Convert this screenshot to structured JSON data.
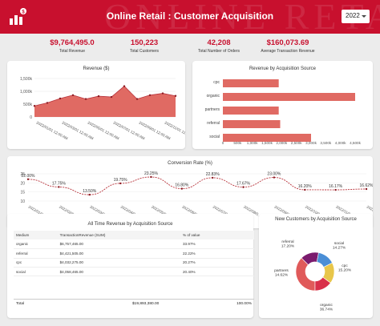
{
  "header": {
    "watermark": "ONLINE RETAIL",
    "title": "Online Retail : Customer Acquisition",
    "year_selected": "2022",
    "colors": {
      "accent": "#c8102e",
      "chart_fill": "#e06a63",
      "donut": [
        "#e05a5a",
        "#7b1b6e",
        "#4a8ed6",
        "#e8c64a",
        "#d9304a"
      ]
    }
  },
  "kpis": [
    {
      "value": "$9,764,495.0",
      "label": "Total Revenue"
    },
    {
      "value": "150,223",
      "label": "Total Customers"
    },
    {
      "value": "42,208",
      "label": "Total Number of Orders"
    },
    {
      "value": "$160,073.69",
      "label": "Average Transaction Revenue"
    }
  ],
  "revenue_chart": {
    "title": "Revenue ($)",
    "y_ticks": [
      "1,500k",
      "1,000k",
      "500k",
      "0"
    ],
    "x_labels": [
      "2022/01/01 12:00 AM",
      "2022/03/01 12:00 AM",
      "2022/05/01 12:00 AM",
      "2022/07/01 12:00 AM",
      "2022/09/01 12:00 AM",
      "2022/11/01 12:00 AM"
    ]
  },
  "source_chart": {
    "title": "Revenue by Acquisition Source",
    "x_ticks": [
      "0",
      "500k",
      "1,000k",
      "1,500k",
      "2,000k",
      "2,500k",
      "3,000k",
      "3,500k",
      "4,000k",
      "4,500k"
    ]
  },
  "conversion_chart": {
    "title": "Conversion Rate (%)",
    "y_ticks": [
      "25",
      "20",
      "15",
      "10"
    ],
    "x_labels": [
      "2022/01/0...",
      "2022/02/0...",
      "2022/03/0...",
      "2022/04/0...",
      "2022/05/0...",
      "2022/06/0...",
      "2022/07/0...",
      "2022/08/0...",
      "2022/09/0...",
      "2022/10/0...",
      "2022/11/0...",
      "2022/12/0..."
    ]
  },
  "table": {
    "title": "All Time Revenue by Acquisition Source",
    "headers": [
      "Medium",
      "TransactionRevenue (SUM)",
      "% of value"
    ],
    "rows": [
      [
        "organic",
        "$6,757,465.00",
        "33.97%"
      ],
      [
        "referral",
        "$4,421,505.00",
        "22.22%"
      ],
      [
        "cpc",
        "$4,032,275.00",
        "20.27%"
      ],
      [
        "social",
        "$4,058,465.00",
        "20.40%"
      ]
    ],
    "total_label": "Total",
    "total_revenue": "$19,893,380.00",
    "total_pct": "100.00%"
  },
  "donut": {
    "title": "New Customers by Acquisition Source"
  },
  "chart_data": [
    {
      "type": "area",
      "title": "Revenue ($)",
      "x": [
        "2022-01",
        "2022-02",
        "2022-03",
        "2022-04",
        "2022-05",
        "2022-06",
        "2022-07",
        "2022-08",
        "2022-09",
        "2022-10",
        "2022-11",
        "2022-12"
      ],
      "values": [
        430000,
        550000,
        720000,
        850000,
        700000,
        810000,
        780000,
        1200000,
        700000,
        850000,
        920000,
        820000
      ],
      "ylim": [
        0,
        1500000
      ]
    },
    {
      "type": "bar",
      "title": "Revenue by Acquisition Source",
      "categories": [
        "cpc",
        "organic",
        "partners",
        "referral",
        "social"
      ],
      "values": [
        1900000,
        4500000,
        1900000,
        1950000,
        3000000
      ],
      "xlim": [
        0,
        4500000
      ]
    },
    {
      "type": "line",
      "title": "Conversion Rate (%)",
      "x": [
        "2022-01",
        "2022-02",
        "2022-03",
        "2022-04",
        "2022-05",
        "2022-06",
        "2022-07",
        "2022-08",
        "2022-09",
        "2022-10",
        "2022-11",
        "2022-12"
      ],
      "values": [
        22.0,
        17.75,
        13.5,
        19.75,
        23.25,
        16.8,
        22.83,
        17.67,
        23.0,
        16.2,
        16.17,
        16.62
      ],
      "labels": [
        "22.00%",
        "17.75%",
        "13.50%",
        "19.75%",
        "23.25%",
        "16.80%",
        "22.83%",
        "17.67%",
        "23.00%",
        "16.20%",
        "16.17%",
        "16.62%"
      ],
      "ylim": [
        10,
        25
      ]
    },
    {
      "type": "pie",
      "title": "New Customers by Acquisition Source",
      "categories": [
        "organic",
        "cpc",
        "social",
        "referral",
        "partners"
      ],
      "values": [
        36.74,
        15.2,
        14.27,
        17.2,
        14.62
      ],
      "labels": [
        "organic\n36.74%",
        "cpc\n15.20%",
        "social\n14.27%",
        "referral\n17.20%",
        "partners\n14.62%"
      ]
    }
  ]
}
